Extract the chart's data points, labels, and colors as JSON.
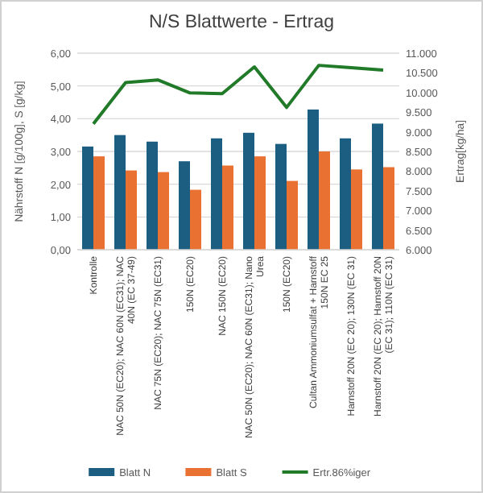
{
  "chart_data": {
    "type": "bar",
    "title": "N/S Blattwerte - Ertrag",
    "ylabel": "Nährstoff N [g/100g], S [g/kg]",
    "y2label": "Ertrag[kg/ha]",
    "categories": [
      "Kontrolle",
      "NAC 50N (EC20); NAC 60N (EC31); NAC 40N (EC 37-49)",
      "NAC 75N (EC20); NAC 75N (EC31)",
      "150N (EC20)",
      "NAC 150N (EC20)",
      "NAC 50N (EC20); NAC 60N (EC31); Nano Urea",
      "150N (EC20)",
      "Cultan Ammoniumsulfat + Harnstoff 150N EC 25",
      "Harnstoff 20N (EC 20); 130N (EC 31)",
      "Harnstoff 20N (EC 20); Harnstoff 20N (EC 31); 110N (EC 31)"
    ],
    "series": [
      {
        "name": "Blatt N",
        "color": "#1b5e82",
        "values": [
          3.15,
          3.5,
          3.3,
          2.7,
          3.4,
          3.57,
          3.23,
          4.28,
          3.4,
          3.85
        ]
      },
      {
        "name": "Blatt S",
        "color": "#e97132",
        "values": [
          2.85,
          2.42,
          2.37,
          1.83,
          2.57,
          2.85,
          2.1,
          3.0,
          2.45,
          2.52
        ]
      },
      {
        "name": "Ertr.86%iger",
        "type": "line",
        "axis": "y2",
        "color": "#217a28",
        "values": [
          9200,
          10250,
          10320,
          9990,
          9970,
          10650,
          9620,
          10690,
          10630,
          10570
        ]
      }
    ],
    "ylim": [
      0,
      6
    ],
    "yticks": [
      {
        "value": 0,
        "label": "0,00"
      },
      {
        "value": 1,
        "label": "1,00"
      },
      {
        "value": 2,
        "label": "2,00"
      },
      {
        "value": 3,
        "label": "3,00"
      },
      {
        "value": 4,
        "label": "4,00"
      },
      {
        "value": 5,
        "label": "5,00"
      },
      {
        "value": 6,
        "label": "6,00"
      }
    ],
    "y2lim": [
      6000,
      11000
    ],
    "y2ticks": [
      {
        "value": 6000,
        "label": "6.000"
      },
      {
        "value": 6500,
        "label": "6.500"
      },
      {
        "value": 7000,
        "label": "7.000"
      },
      {
        "value": 7500,
        "label": "7.500"
      },
      {
        "value": 8000,
        "label": "8.000"
      },
      {
        "value": 8500,
        "label": "8.500"
      },
      {
        "value": 9000,
        "label": "9.000"
      },
      {
        "value": 9500,
        "label": "9.500"
      },
      {
        "value": 10000,
        "label": "10.000"
      },
      {
        "value": 10500,
        "label": "10.500"
      },
      {
        "value": 11000,
        "label": "11.000"
      }
    ],
    "grid": "y",
    "legend": "bottom",
    "marker": "none"
  }
}
